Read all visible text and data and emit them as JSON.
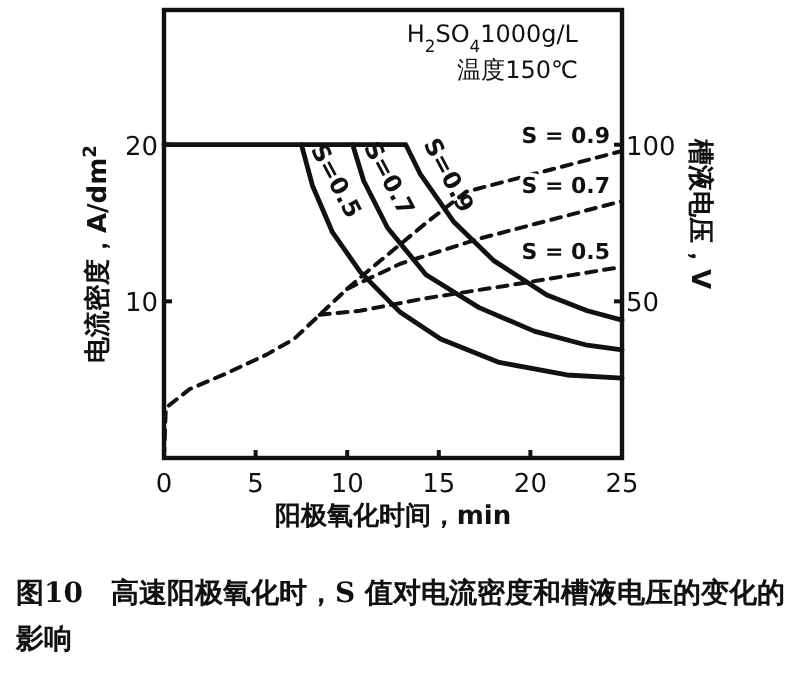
{
  "chart_data": {
    "type": "line",
    "title": "图10　高速阳极氧化时，S 值对电流密度和槽液电压的变化的影响",
    "xlabel": "阳极氧化时间，min",
    "ylabel": "电流密度，A/dm$^{2}$",
    "y2label": "槽液电压，V",
    "annotations": [
      "H$_{2}$SO$_{4}$1000g/L",
      "温度150℃"
    ],
    "xlim": [
      0,
      25
    ],
    "xticks": [
      0,
      5,
      10,
      15,
      20,
      25
    ],
    "ylim": [
      0,
      28.6
    ],
    "yticks": [
      10,
      20
    ],
    "y2lim": [
      0,
      143
    ],
    "y2ticks": [
      50,
      100
    ],
    "grid": false,
    "marker": "none",
    "series": [
      {
        "name": "S=0.5",
        "color": "#111111",
        "line_style": "solid",
        "x": [
          7.5,
          8.1,
          9.2,
          10.7,
          12.9,
          15.1,
          18.3,
          22.0,
          25
        ],
        "values": [
          20,
          17.4,
          14.4,
          11.9,
          9.3,
          7.6,
          6.1,
          5.3,
          5.1
        ]
      },
      {
        "name": "S=0.7",
        "color": "#111111",
        "line_style": "solid",
        "x": [
          10.3,
          10.9,
          12.2,
          14.3,
          17.2,
          20.2,
          23.1,
          25
        ],
        "values": [
          20,
          17.7,
          14.7,
          11.7,
          9.6,
          8.1,
          7.2,
          6.9
        ]
      },
      {
        "name": "S=0.9",
        "color": "#111111",
        "line_style": "solid",
        "x": [
          0,
          13.2,
          14.0,
          15.8,
          18.0,
          20.9,
          23.1,
          25
        ],
        "values": [
          20,
          20,
          18.1,
          15.1,
          12.6,
          10.4,
          9.4,
          8.8
        ]
      },
      {
        "name": "S = 0.9",
        "color": "#111111",
        "line_style": "dashed",
        "axis": "y2",
        "x": [
          0,
          0.1,
          1.4,
          3.4,
          5.6,
          7.1,
          10.0,
          11.4,
          14.3,
          16.5,
          25
        ],
        "values": [
          0,
          16,
          22,
          27,
          33,
          38,
          54,
          61,
          75,
          85,
          98
        ]
      },
      {
        "name": "S = 0.7",
        "color": "#111111",
        "line_style": "dashed",
        "axis": "y2",
        "x": [
          10.0,
          12.9,
          17.2,
          25
        ],
        "values": [
          54,
          62,
          70,
          82
        ]
      },
      {
        "name": "S = 0.5",
        "color": "#111111",
        "line_style": "dashed",
        "axis": "y2",
        "x": [
          8.5,
          10.7,
          14.3,
          18.7,
          25
        ],
        "values": [
          45.7,
          47,
          51,
          55,
          61
        ]
      }
    ]
  }
}
